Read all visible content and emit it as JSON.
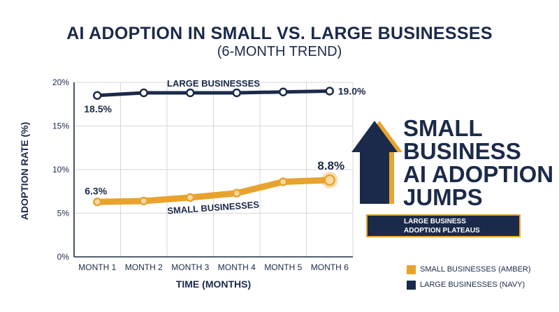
{
  "chart_data": {
    "type": "line",
    "title": "AI ADOPTION IN SMALL VS. LARGE BUSINESSES",
    "subtitle": "(6-MONTH TREND)",
    "xlabel": "TIME (MONTHS)",
    "ylabel": "ADOPTION RATE (%)",
    "categories": [
      "MONTH 1",
      "MONTH 2",
      "MONTH 3",
      "MONTH 4",
      "MONTH 5",
      "MONTH 6"
    ],
    "ylim": [
      0,
      20
    ],
    "yticks": [
      "0%",
      "5%",
      "10%",
      "15%",
      "20%"
    ],
    "grid": true,
    "series": [
      {
        "name": "LARGE BUSINESSES",
        "color": "#1b2a4a",
        "values": [
          18.5,
          18.8,
          18.8,
          18.8,
          18.9,
          19.0
        ],
        "labels": {
          "0": "18.5%",
          "5": "19.0%"
        }
      },
      {
        "name": "SMALL BUSINESSES",
        "color": "#e8a32e",
        "values": [
          6.3,
          6.4,
          6.8,
          7.3,
          8.6,
          8.8
        ],
        "labels": {
          "0": "6.3%",
          "5": "8.8%"
        }
      }
    ],
    "legend": {
      "placement": "bottom-right",
      "entries": [
        "SMALL BUSINESSES (AMBER)",
        "LARGE BUSINESSES (NAVY)"
      ]
    },
    "callout": {
      "headline": [
        "SMALL",
        "BUSINESS",
        "AI ADOPTION",
        "JUMPS"
      ],
      "note": [
        "LARGE BUSINESS",
        "ADOPTION PLATEAUS"
      ]
    }
  }
}
